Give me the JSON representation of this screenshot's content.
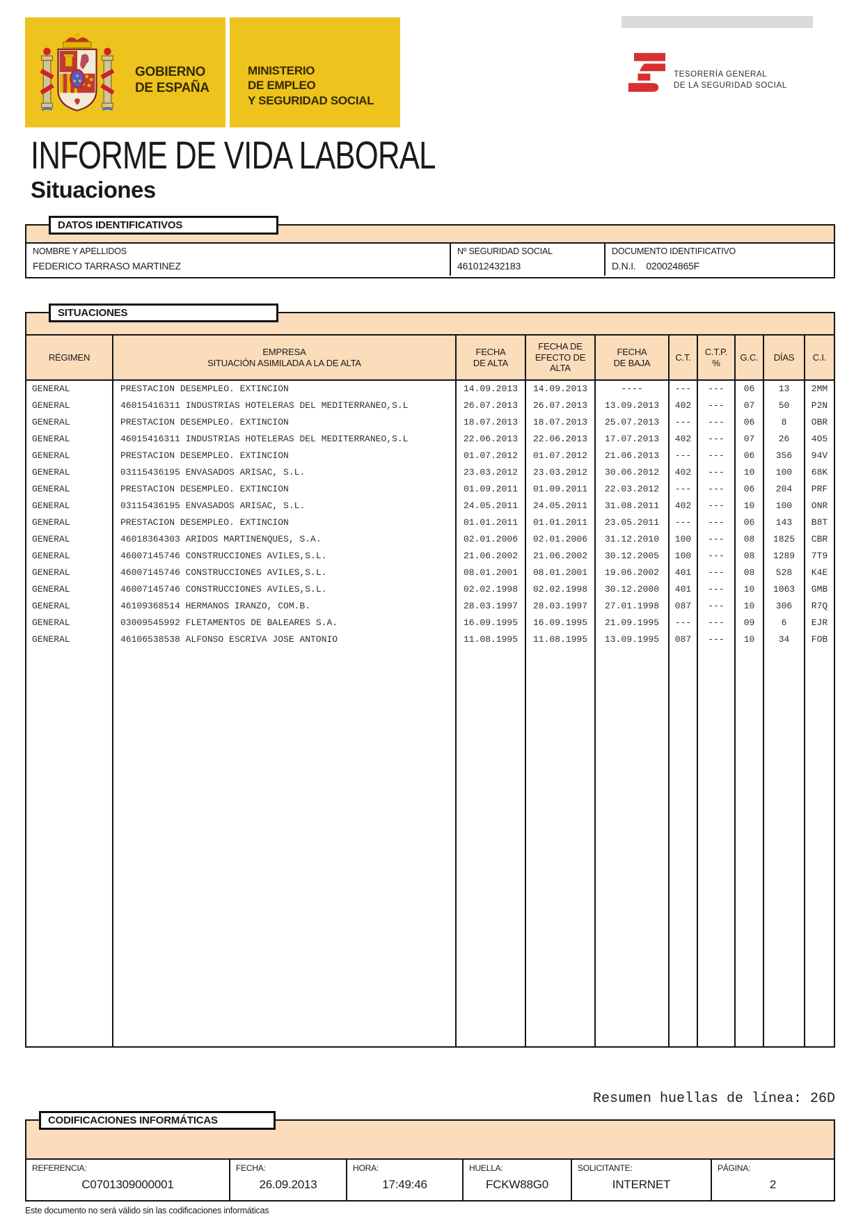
{
  "header": {
    "gobierno": {
      "line1": "GOBIERNO",
      "line2": "DE ESPAÑA"
    },
    "ministerio": {
      "line1": "MINISTERIO",
      "line2": "DE EMPLEO",
      "line3": "Y SEGURIDAD SOCIAL"
    },
    "tgss": {
      "line1": "TESORERÍA GENERAL",
      "line2": "DE LA SEGURIDAD SOCIAL"
    }
  },
  "title": "INFORME DE VIDA LABORAL",
  "subtitle": "Situaciones",
  "datos": {
    "tag": "DATOS IDENTIFICATIVOS",
    "fields": [
      {
        "label": "NOMBRE Y APELLIDOS",
        "value": "FEDERICO TARRASO MARTINEZ"
      },
      {
        "label": "Nº SEGURIDAD SOCIAL",
        "value": "461012432183"
      },
      {
        "label": "DOCUMENTO IDENTIFICATIVO",
        "value": "D.N.I.    020024865F"
      }
    ]
  },
  "situaciones": {
    "tag": "SITUACIONES",
    "columns": [
      "RÉGIMEN",
      "EMPRESA\nSITUACIÓN ASIMILADA A LA DE ALTA",
      "FECHA\nDE ALTA",
      "FECHA DE\nEFECTO DE\nALTA",
      "FECHA\nDE BAJA",
      "C.T.",
      "C.T.P.\n%",
      "G.C.",
      "DÍAS",
      "C.I."
    ],
    "rows": [
      [
        "GENERAL",
        "PRESTACION DESEMPLEO. EXTINCION",
        "14.09.2013",
        "14.09.2013",
        "----",
        "---",
        "---",
        "06",
        "13",
        "2MM"
      ],
      [
        "GENERAL",
        "46015416311 INDUSTRIAS HOTELERAS DEL MEDITERRANEO,S.L",
        "26.07.2013",
        "26.07.2013",
        "13.09.2013",
        "402",
        "---",
        "07",
        "50",
        "P2N"
      ],
      [
        "GENERAL",
        "PRESTACION DESEMPLEO. EXTINCION",
        "18.07.2013",
        "18.07.2013",
        "25.07.2013",
        "---",
        "---",
        "06",
        "8",
        "OBR"
      ],
      [
        "GENERAL",
        "46015416311 INDUSTRIAS HOTELERAS DEL MEDITERRANEO,S.L",
        "22.06.2013",
        "22.06.2013",
        "17.07.2013",
        "402",
        "---",
        "07",
        "26",
        "4O5"
      ],
      [
        "GENERAL",
        "PRESTACION DESEMPLEO. EXTINCION",
        "01.07.2012",
        "01.07.2012",
        "21.06.2013",
        "---",
        "---",
        "06",
        "356",
        "94V"
      ],
      [
        "GENERAL",
        "03115436195 ENVASADOS ARISAC, S.L.",
        "23.03.2012",
        "23.03.2012",
        "30.06.2012",
        "402",
        "---",
        "10",
        "100",
        "68K"
      ],
      [
        "GENERAL",
        "PRESTACION DESEMPLEO. EXTINCION",
        "01.09.2011",
        "01.09.2011",
        "22.03.2012",
        "---",
        "---",
        "06",
        "204",
        "PRF"
      ],
      [
        "GENERAL",
        "03115436195 ENVASADOS ARISAC, S.L.",
        "24.05.2011",
        "24.05.2011",
        "31.08.2011",
        "402",
        "---",
        "10",
        "100",
        "ONR"
      ],
      [
        "GENERAL",
        "PRESTACION DESEMPLEO. EXTINCION",
        "01.01.2011",
        "01.01.2011",
        "23.05.2011",
        "---",
        "---",
        "06",
        "143",
        "B8T"
      ],
      [
        "GENERAL",
        "46018364303 ARIDOS MARTINENQUES, S.A.",
        "02.01.2006",
        "02.01.2006",
        "31.12.2010",
        "100",
        "---",
        "08",
        "1825",
        "CBR"
      ],
      [
        "GENERAL",
        "46007145746 CONSTRUCCIONES AVILES,S.L.",
        "21.06.2002",
        "21.06.2002",
        "30.12.2005",
        "100",
        "---",
        "08",
        "1289",
        "7T9"
      ],
      [
        "GENERAL",
        "46007145746 CONSTRUCCIONES AVILES,S.L.",
        "08.01.2001",
        "08.01.2001",
        "19.06.2002",
        "401",
        "---",
        "08",
        "528",
        "K4E"
      ],
      [
        "GENERAL",
        "46007145746 CONSTRUCCIONES AVILES,S.L.",
        "02.02.1998",
        "02.02.1998",
        "30.12.2000",
        "401",
        "---",
        "10",
        "1063",
        "GMB"
      ],
      [
        "GENERAL",
        "46109368514 HERMANOS IRANZO, COM.B.",
        "28.03.1997",
        "28.03.1997",
        "27.01.1998",
        "087",
        "---",
        "10",
        "306",
        "R7Q"
      ],
      [
        "GENERAL",
        "03009545992 FLETAMENTOS DE BALEARES S.A.",
        "16.09.1995",
        "16.09.1995",
        "21.09.1995",
        "---",
        "---",
        "09",
        "6",
        "EJR"
      ],
      [
        "GENERAL",
        "46106538538 ALFONSO ESCRIVA JOSE ANTONIO",
        "11.08.1995",
        "11.08.1995",
        "13.09.1995",
        "087",
        "---",
        "10",
        "34",
        "FOB"
      ]
    ]
  },
  "resumen": "Resumen huellas de línea: 26D",
  "codificaciones": {
    "tag": "CODIFICACIONES INFORMÁTICAS",
    "fields": [
      {
        "label": "REFERENCIA:",
        "value": "C0701309000001"
      },
      {
        "label": "FECHA:",
        "value": "26.09.2013"
      },
      {
        "label": "HORA:",
        "value": "17:49:46"
      },
      {
        "label": "HUELLA:",
        "value": "FCKW88G0"
      },
      {
        "label": "SOLICITANTE:",
        "value": "INTERNET"
      },
      {
        "label": "PÁGINA:",
        "value": "2"
      }
    ]
  },
  "note": "Este documento no será válido sin las codificaciones informáticas",
  "colors": {
    "yellow": "#EEC31E",
    "peach": "#FBDCBB",
    "red": "#D63030",
    "gray_bar": "#DBDBDB"
  }
}
